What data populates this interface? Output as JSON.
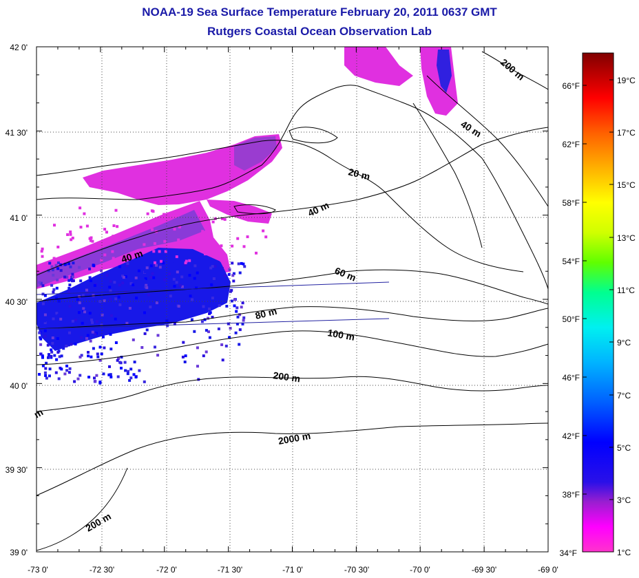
{
  "header": {
    "title": "NOAA-19 Sea Surface Temperature February 20, 2011 0637 GMT",
    "subtitle": "Rutgers Coastal Ocean Observation Lab"
  },
  "map": {
    "lat_labels": [
      "42 0'",
      "41 30'",
      "41 0'",
      "40 30'",
      "40 0'",
      "39 30'",
      "39 0'"
    ],
    "lon_labels": [
      "-73 0'",
      "-72 30'",
      "-72 0'",
      "-71 30'",
      "-71 0'",
      "-70 30'",
      "-70 0'",
      "-69 30'",
      "-69 0'"
    ],
    "lat_range": [
      39.0,
      42.0
    ],
    "lon_range": [
      -73.0,
      -69.0
    ],
    "graticule": "dotted, every 30'",
    "contour_labels": [
      "200 m",
      "40 m",
      "20 m",
      "40 m",
      "40 m",
      "60 m",
      "80 m",
      "100 m",
      "200 m",
      "2000 m",
      "200 m",
      "m"
    ]
  },
  "colorbar": {
    "fahrenheit_labels": [
      "66°F",
      "62°F",
      "58°F",
      "54°F",
      "50°F",
      "46°F",
      "42°F",
      "38°F",
      "34°F"
    ],
    "celsius_labels": [
      "19°C",
      "17°C",
      "15°C",
      "13°C",
      "11°C",
      "9°C",
      "7°C",
      "5°C",
      "3°C",
      "1°C"
    ],
    "range_c": [
      1,
      20
    ]
  },
  "colors": {
    "title": "#1a1aa8",
    "coldest": "#ff33cc",
    "cold": "#1010e0",
    "warmest": "#800000"
  }
}
